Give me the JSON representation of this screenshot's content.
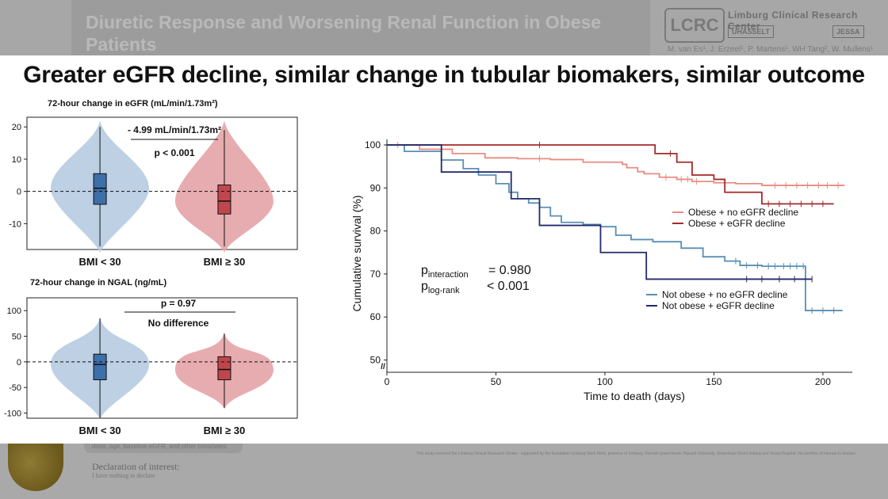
{
  "background": {
    "title": "Diuretic Response and Worsening Renal Function in Obese Patients\nwith acute heart failure: a ROSE-AHF substudy",
    "logo_text": "LCRC",
    "org_name": "Limburg Clinical Research Center",
    "logo_uhasselt": "UHASSELT",
    "logo_jessa": "JESSA",
    "authors": "M. van Es¹, J. Erzeel¹, P. Martens¹, WH Tang², W. Mullens¹",
    "footer_note": "dose, age, baseline eGFR, and other covariates",
    "declaration_title": "Declaration of interest:",
    "declaration_text": "I have nothing to declare",
    "funding": "This study received the Limburg Clinical Research Center - supported by the foundation Limburg Sterk Merk, province of Limburg, Flemish government, Hasselt University, Ziekenhuis Oost-Limburg and Jessa Hospital. No conflicts of interest to declare."
  },
  "headline": "Greater eGFR decline, similar change in tubular biomakers, similar outcome",
  "colors": {
    "blue": "#3e6fa8",
    "blue_light": "#b9cde3",
    "red": "#c0464e",
    "red_light": "#e6a8ab",
    "km_salmon": "#e88c82",
    "km_darkred": "#a52a2a",
    "km_steel": "#5a8fb4",
    "km_navy": "#232a6b"
  },
  "chart_data": [
    {
      "type": "violin",
      "title": "72-hour change in eGFR (mL/min/1.73m²)",
      "categories": [
        "BMI < 30",
        "BMI ≥ 30"
      ],
      "yticks": [
        20,
        10,
        0,
        -10
      ],
      "ylim": [
        -18,
        23
      ],
      "reference_line": 0,
      "annotation": "- 4.99 mL/min/1.73m²",
      "p_value": "p < 0.001",
      "series": [
        {
          "category": "BMI < 30",
          "median": 1,
          "q1": -4,
          "q3": 5.5,
          "whisker_low": -17,
          "whisker_high": 20
        },
        {
          "category": "BMI ≥ 30",
          "median": -3,
          "q1": -7,
          "q3": 2,
          "whisker_low": -17,
          "whisker_high": 19
        }
      ]
    },
    {
      "type": "violin",
      "title": "72-hour change in NGAL (ng/mL)",
      "categories": [
        "BMI < 30",
        "BMI ≥ 30"
      ],
      "yticks": [
        100,
        50,
        0,
        -50,
        -100
      ],
      "ylim": [
        -110,
        125
      ],
      "reference_line": 0,
      "p_value": "p = 0.97",
      "annotation": "No difference",
      "series": [
        {
          "category": "BMI < 30",
          "median": -5,
          "q1": -35,
          "q3": 15,
          "whisker_low": -110,
          "whisker_high": 85
        },
        {
          "category": "BMI ≥ 30",
          "median": -15,
          "q1": -35,
          "q3": 10,
          "whisker_low": -90,
          "whisker_high": 55
        }
      ]
    },
    {
      "type": "line",
      "xlabel": "Time to death (days)",
      "ylabel": "Cumulative survival (%)",
      "xticks": [
        0,
        50,
        100,
        150,
        200
      ],
      "yticks": [
        100,
        90,
        80,
        70,
        60,
        50
      ],
      "xlim": [
        0,
        212
      ],
      "ylim": [
        50,
        101
      ],
      "stats": [
        {
          "label": "p",
          "sub": "interaction",
          "value": "= 0.980"
        },
        {
          "label": "p",
          "sub": "log-rank",
          "value": "< 0.001"
        }
      ],
      "series": [
        {
          "name": "Obese + no eGFR decline",
          "color_key": "km_salmon",
          "x": [
            0,
            15,
            30,
            45,
            60,
            75,
            90,
            108,
            110,
            115,
            118,
            125,
            133,
            140,
            150,
            160,
            172,
            210
          ],
          "y": [
            100,
            99,
            98,
            97,
            96.8,
            96.6,
            96,
            95.5,
            94.7,
            93.8,
            93.3,
            92.5,
            92,
            91.5,
            91.2,
            91,
            90.6,
            90.6
          ],
          "censor_x": [
            5,
            70,
            128,
            135,
            138,
            142,
            178,
            183,
            188,
            193,
            198,
            202,
            207
          ]
        },
        {
          "name": "Obese + eGFR decline",
          "color_key": "km_darkred",
          "x": [
            0,
            120,
            123,
            133,
            140,
            150,
            155,
            166,
            172,
            205
          ],
          "y": [
            100,
            100,
            98,
            96,
            93,
            92,
            89,
            89,
            86.3,
            86.3
          ],
          "censor_x": [
            70,
            130,
            175,
            180,
            185,
            190,
            195,
            200
          ]
        },
        {
          "name": "Not obese + no eGFR decline",
          "color_key": "km_steel",
          "x": [
            0,
            8,
            15,
            25,
            35,
            42,
            50,
            56,
            60,
            65,
            70,
            75,
            80,
            90,
            98,
            105,
            112,
            122,
            135,
            145,
            155,
            162,
            172,
            190,
            192,
            209
          ],
          "y": [
            100,
            98.5,
            98.5,
            96.5,
            94.5,
            93,
            91,
            89,
            87.5,
            86.5,
            85.5,
            83.5,
            82,
            81.5,
            81,
            79,
            78,
            77.5,
            76,
            74,
            73,
            72,
            71.8,
            71.8,
            61.5,
            61.5
          ],
          "censor_x": [
            160,
            165,
            170,
            175,
            178,
            182,
            185,
            188,
            191,
            195,
            200,
            205
          ]
        },
        {
          "name": "Not obese + eGFR decline",
          "color_key": "km_navy",
          "x": [
            0,
            25,
            45,
            57,
            70,
            90,
            98,
            110,
            119,
            193,
            195
          ],
          "y": [
            100,
            93.7,
            93.7,
            87.5,
            81.3,
            81.3,
            75,
            75,
            68.8,
            68.8,
            68.8
          ],
          "censor_x": [
            165,
            172,
            180,
            187,
            195
          ]
        }
      ]
    }
  ]
}
